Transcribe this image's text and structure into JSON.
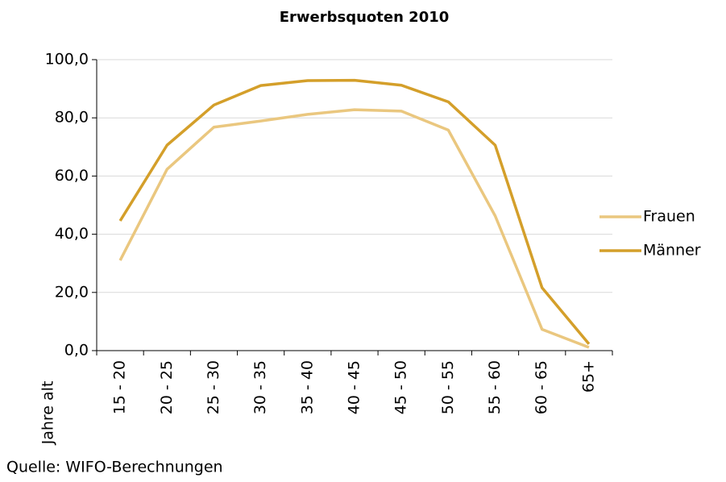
{
  "chart_data": {
    "type": "line",
    "title": "Erwerbsquoten 2010",
    "x_label": "Jahre alt",
    "source": "Quelle:  WIFO-Berechnungen",
    "categories": [
      "15 - 20",
      "20 - 25",
      "25 - 30",
      "30 - 35",
      "35 - 40",
      "40 - 45",
      "45 - 50",
      "50 - 55",
      "55 - 60",
      "60 - 65",
      "65+"
    ],
    "series": [
      {
        "name": "Frauen",
        "color": "#eac77f",
        "values": [
          31.0,
          62.3,
          76.8,
          78.9,
          81.2,
          82.8,
          82.3,
          75.8,
          46.3,
          7.3,
          1.1
        ]
      },
      {
        "name": "Männer",
        "color": "#d49f2a",
        "values": [
          44.6,
          70.6,
          84.4,
          91.1,
          92.8,
          92.9,
          91.2,
          85.5,
          70.6,
          21.6,
          2.3
        ]
      }
    ],
    "ylim": [
      0,
      100
    ],
    "yticks": [
      {
        "value": 0,
        "label": "0,0"
      },
      {
        "value": 20,
        "label": "20,0"
      },
      {
        "value": 40,
        "label": "40,0"
      },
      {
        "value": 60,
        "label": "60,0"
      },
      {
        "value": 80,
        "label": "80,0"
      },
      {
        "value": 100,
        "label": "100,0"
      }
    ],
    "grid": true,
    "legend": "right"
  }
}
